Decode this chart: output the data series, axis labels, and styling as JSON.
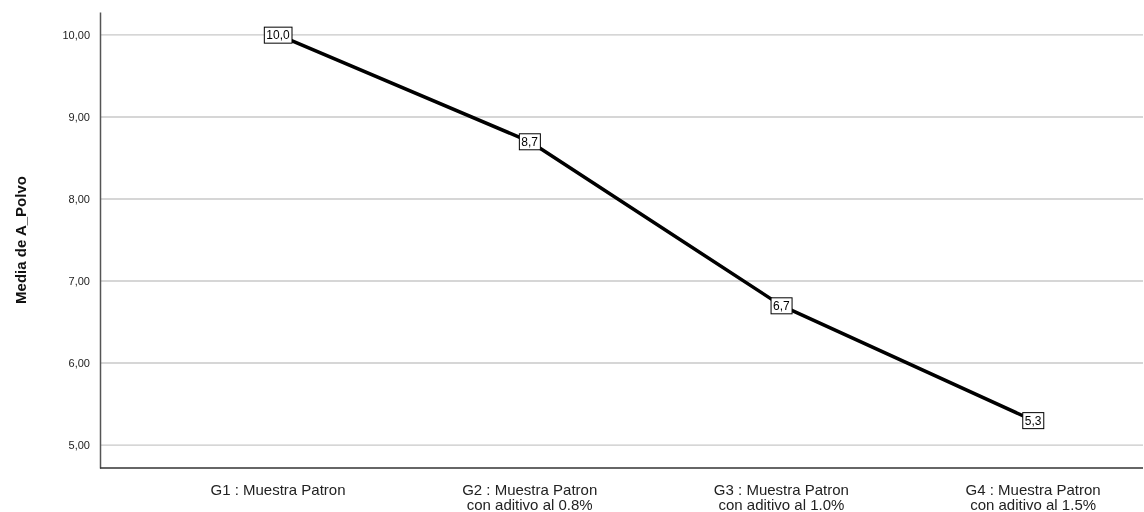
{
  "chart_data": {
    "type": "line",
    "ylabel": "Media de A_Polvo",
    "categories": [
      "G1 : Muestra Patron",
      "G2 : Muestra Patron\ncon aditivo al 0.8%",
      "G3 : Muestra Patron\ncon aditivo al 1.0%",
      "G4 : Muestra Patron\ncon aditivo al 1.5%"
    ],
    "series": [
      {
        "color": "#000000",
        "values": [
          10.0,
          8.7,
          6.7,
          5.3
        ],
        "value_labels": [
          "10,0",
          "8,7",
          "6,7",
          "5,3"
        ]
      }
    ],
    "ylim": [
      4.72,
      10.28
    ],
    "yticks": [
      {
        "value": 5,
        "label": "5,00"
      },
      {
        "value": 6,
        "label": "6,00"
      },
      {
        "value": 7,
        "label": "7,00"
      },
      {
        "value": 8,
        "label": "8,00"
      },
      {
        "value": 9,
        "label": "9,00"
      },
      {
        "value": 10,
        "label": "10,00"
      }
    ],
    "grid": "y",
    "marker": "square",
    "line_style": "solid"
  }
}
